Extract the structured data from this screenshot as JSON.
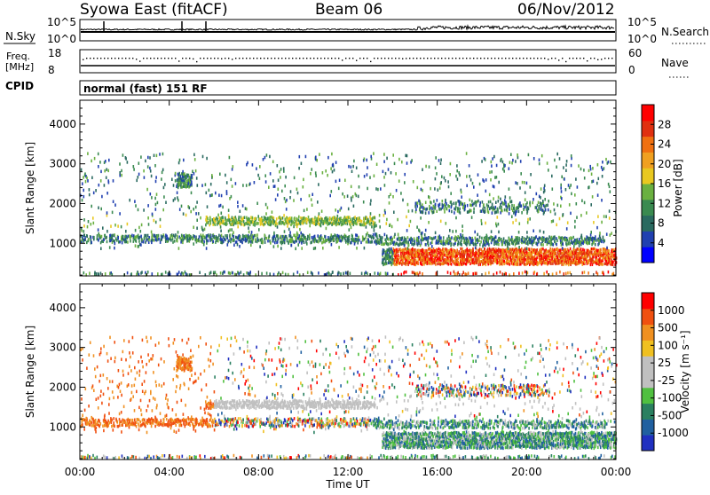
{
  "header": {
    "title": "Syowa East (fitACF)",
    "beam": "Beam 06",
    "date": "06/Nov/2012"
  },
  "status_panels": {
    "nsky_label": "N.Sky",
    "nsearch_label": "N.Search",
    "nsky_ticks": [
      "10^5",
      "10^0"
    ],
    "nsearch_ticks": [
      "10^5",
      "10^0"
    ],
    "freq_label": "Freq.",
    "freq_unit": "[MHz]",
    "freq_ticks": [
      "18",
      "8"
    ],
    "nave_label": "Nave",
    "nave_ticks": [
      "60",
      "0"
    ],
    "cpid_label": "CPID",
    "cpid_value": "normal (fast) 151 RF"
  },
  "chart_data": [
    {
      "type": "heatmap",
      "name": "power",
      "xlabel": "",
      "ylabel": "Slant Range [km]",
      "xlim": [
        0,
        24
      ],
      "ylim": [
        180,
        4600
      ],
      "yticks": [
        1000,
        2000,
        3000,
        4000
      ],
      "colorbar": {
        "label": "Power [dB]",
        "ticks": [
          "28",
          "24",
          "20",
          "16",
          "12",
          "8",
          "4"
        ],
        "colors": [
          "#0000ff",
          "#2040b0",
          "#2a6a60",
          "#3a8a50",
          "#6ab040",
          "#e8c820",
          "#f0a020",
          "#f07010",
          "#e03010",
          "#ff0000"
        ]
      }
    },
    {
      "type": "heatmap",
      "name": "velocity",
      "xlabel": "Time UT",
      "ylabel": "Slant Range [km]",
      "xlim": [
        0,
        24
      ],
      "ylim": [
        180,
        4600
      ],
      "yticks": [
        1000,
        2000,
        3000,
        4000
      ],
      "xticks": [
        "00:00",
        "04:00",
        "08:00",
        "12:00",
        "16:00",
        "20:00",
        "00:00"
      ],
      "colorbar": {
        "label": "Velocity [m s⁻¹]",
        "ticks": [
          "1000",
          "500",
          "100",
          "25",
          "-25",
          "-100",
          "-500",
          "-1000"
        ],
        "colors": [
          "#2030c0",
          "#2060a0",
          "#2a8060",
          "#50c040",
          "#c0c0c0",
          "#c0c0c0",
          "#f0c020",
          "#f09020",
          "#f05010",
          "#ff0000"
        ]
      }
    }
  ]
}
